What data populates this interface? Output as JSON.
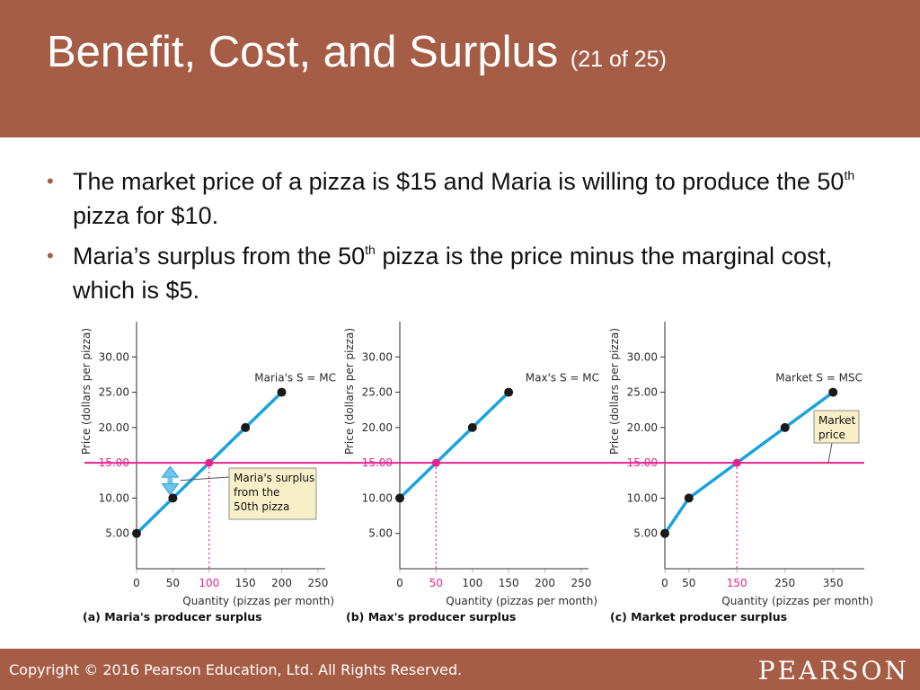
{
  "slide": {
    "title": "Benefit, Cost, and Surplus",
    "title_suffix": "(21 of 25)",
    "bullet_symbol": "•",
    "bullets": [
      {
        "text_a": "The market price of a pizza is $15 and Maria is willing to produce the 50",
        "sup": "th",
        "text_b": " pizza for $10."
      },
      {
        "text_a": "Maria’s surplus from the 50",
        "sup": "th",
        "text_b": " pizza is the price minus the marginal cost, which is $5."
      }
    ]
  },
  "footer": {
    "copyright": "Copyright © 2016 Pearson Education, Ltd. All Rights Reserved.",
    "logo": "PEARSON"
  },
  "colors": {
    "brand": "#a65d46",
    "supply_line": "#1aa3dd",
    "price_line": "#e6238f",
    "callout_bg": "#f7efc8",
    "point": "#1a1a1a"
  },
  "chart_data": [
    {
      "type": "line",
      "caption": "(a) Maria's producer surplus",
      "xlabel": "Quantity (pizzas per month)",
      "ylabel": "Price (dollars per pizza)",
      "xlim": [
        0,
        260
      ],
      "ylim": [
        0,
        35
      ],
      "xticks": [
        "0",
        "50",
        "100",
        "150",
        "200",
        "250"
      ],
      "yticks": [
        "5.00",
        "10.00",
        "15.00",
        "20.00",
        "25.00",
        "30.00"
      ],
      "highlight_x_tick": "100",
      "curve_label": "Maria's S = MC",
      "series": [
        {
          "name": "Maria's S = MC",
          "x": [
            0,
            50,
            100,
            150,
            200
          ],
          "y": [
            5,
            10,
            15,
            20,
            25
          ]
        }
      ],
      "market_price": 15,
      "equilibrium": {
        "x": 100,
        "y": 15
      },
      "surplus_marker": {
        "x": 50,
        "y_low": 10,
        "y_high": 15
      },
      "callout": [
        "Maria's surplus",
        "from the",
        "50th pizza"
      ]
    },
    {
      "type": "line",
      "caption": "(b) Max's producer surplus",
      "xlabel": "Quantity (pizzas per month)",
      "ylabel": "Price (dollars per pizza)",
      "xlim": [
        0,
        260
      ],
      "ylim": [
        0,
        35
      ],
      "xticks": [
        "0",
        "50",
        "100",
        "150",
        "200",
        "250"
      ],
      "yticks": [
        "5.00",
        "10.00",
        "15.00",
        "20.00",
        "25.00",
        "30.00"
      ],
      "highlight_x_tick": "50",
      "curve_label": "Max's S = MC",
      "series": [
        {
          "name": "Max's S = MC",
          "x": [
            0,
            50,
            100,
            150
          ],
          "y": [
            10,
            15,
            20,
            25
          ]
        }
      ],
      "market_price": 15,
      "equilibrium": {
        "x": 50,
        "y": 15
      }
    },
    {
      "type": "line",
      "caption": "(c) Market producer surplus",
      "xlabel": "Quantity (pizzas per month)",
      "ylabel": "Price (dollars per pizza)",
      "xlim": [
        0,
        415
      ],
      "ylim": [
        0,
        35
      ],
      "xticks": [
        "0",
        "50",
        "150",
        "250",
        "350"
      ],
      "yticks": [
        "5.00",
        "10.00",
        "15.00",
        "20.00",
        "25.00",
        "30.00"
      ],
      "highlight_x_tick": "150",
      "curve_label": "Market S = MSC",
      "series": [
        {
          "name": "Market S = MSC",
          "x": [
            0,
            50,
            150,
            250,
            350
          ],
          "y": [
            5,
            10,
            15,
            20,
            25
          ]
        }
      ],
      "market_price": 15,
      "equilibrium": {
        "x": 150,
        "y": 15
      },
      "callout": [
        "Market",
        "price"
      ]
    }
  ]
}
